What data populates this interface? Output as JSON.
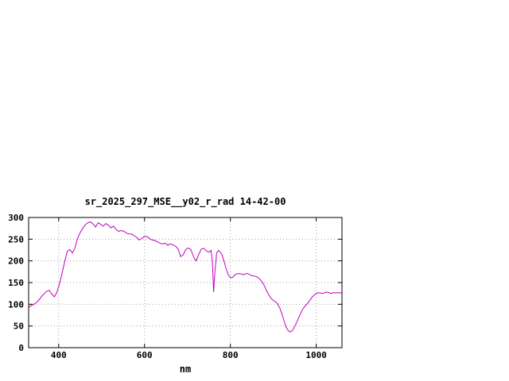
{
  "chart_data": {
    "type": "line",
    "title": "sr_2025_297_MSE__y02_r_rad 14-42-00",
    "xlabel": "nm",
    "ylabel": "",
    "xlim": [
      330,
      1060
    ],
    "ylim": [
      0,
      300
    ],
    "xticks": [
      400,
      600,
      800,
      1000
    ],
    "yticks": [
      0,
      50,
      100,
      150,
      200,
      250,
      300
    ],
    "grid": true,
    "legend": "none",
    "line_color": "#c000c0",
    "series": [
      {
        "name": "sr_2025_297_MSE__y02_r_rad 14-42-00",
        "points": [
          [
            330,
            92
          ],
          [
            336,
            97
          ],
          [
            342,
            100
          ],
          [
            348,
            104
          ],
          [
            354,
            110
          ],
          [
            360,
            118
          ],
          [
            366,
            124
          ],
          [
            372,
            130
          ],
          [
            378,
            132
          ],
          [
            384,
            124
          ],
          [
            390,
            117
          ],
          [
            396,
            128
          ],
          [
            402,
            148
          ],
          [
            408,
            172
          ],
          [
            414,
            198
          ],
          [
            420,
            222
          ],
          [
            426,
            226
          ],
          [
            432,
            218
          ],
          [
            438,
            230
          ],
          [
            444,
            252
          ],
          [
            450,
            265
          ],
          [
            456,
            275
          ],
          [
            462,
            283
          ],
          [
            468,
            288
          ],
          [
            474,
            290
          ],
          [
            480,
            285
          ],
          [
            486,
            278
          ],
          [
            492,
            288
          ],
          [
            498,
            284
          ],
          [
            504,
            280
          ],
          [
            510,
            286
          ],
          [
            516,
            282
          ],
          [
            522,
            276
          ],
          [
            528,
            280
          ],
          [
            534,
            272
          ],
          [
            540,
            268
          ],
          [
            546,
            270
          ],
          [
            552,
            268
          ],
          [
            558,
            264
          ],
          [
            564,
            262
          ],
          [
            570,
            262
          ],
          [
            576,
            258
          ],
          [
            582,
            254
          ],
          [
            588,
            248
          ],
          [
            594,
            252
          ],
          [
            600,
            257
          ],
          [
            606,
            256
          ],
          [
            612,
            251
          ],
          [
            618,
            248
          ],
          [
            624,
            247
          ],
          [
            630,
            244
          ],
          [
            636,
            241
          ],
          [
            642,
            239
          ],
          [
            648,
            241
          ],
          [
            654,
            236
          ],
          [
            660,
            239
          ],
          [
            666,
            237
          ],
          [
            672,
            234
          ],
          [
            678,
            228
          ],
          [
            684,
            210
          ],
          [
            690,
            214
          ],
          [
            696,
            226
          ],
          [
            702,
            230
          ],
          [
            708,
            226
          ],
          [
            714,
            210
          ],
          [
            720,
            200
          ],
          [
            726,
            214
          ],
          [
            732,
            227
          ],
          [
            738,
            229
          ],
          [
            744,
            223
          ],
          [
            750,
            220
          ],
          [
            755,
            224
          ],
          [
            758,
            200
          ],
          [
            761,
            128
          ],
          [
            764,
            175
          ],
          [
            768,
            218
          ],
          [
            772,
            224
          ],
          [
            776,
            221
          ],
          [
            780,
            215
          ],
          [
            785,
            200
          ],
          [
            790,
            182
          ],
          [
            795,
            168
          ],
          [
            800,
            161
          ],
          [
            805,
            162
          ],
          [
            810,
            167
          ],
          [
            815,
            170
          ],
          [
            820,
            171
          ],
          [
            825,
            170
          ],
          [
            830,
            168
          ],
          [
            835,
            170
          ],
          [
            840,
            171
          ],
          [
            845,
            168
          ],
          [
            850,
            166
          ],
          [
            855,
            165
          ],
          [
            860,
            164
          ],
          [
            865,
            161
          ],
          [
            870,
            156
          ],
          [
            875,
            150
          ],
          [
            880,
            141
          ],
          [
            885,
            130
          ],
          [
            890,
            121
          ],
          [
            895,
            113
          ],
          [
            900,
            109
          ],
          [
            905,
            106
          ],
          [
            910,
            101
          ],
          [
            915,
            92
          ],
          [
            920,
            78
          ],
          [
            925,
            62
          ],
          [
            930,
            47
          ],
          [
            935,
            39
          ],
          [
            940,
            36
          ],
          [
            945,
            40
          ],
          [
            950,
            49
          ],
          [
            955,
            59
          ],
          [
            960,
            71
          ],
          [
            965,
            82
          ],
          [
            970,
            91
          ],
          [
            975,
            97
          ],
          [
            980,
            102
          ],
          [
            985,
            109
          ],
          [
            990,
            116
          ],
          [
            995,
            121
          ],
          [
            1000,
            125
          ],
          [
            1005,
            127
          ],
          [
            1010,
            126
          ],
          [
            1015,
            125
          ],
          [
            1020,
            127
          ],
          [
            1025,
            128
          ],
          [
            1030,
            127
          ],
          [
            1035,
            125
          ],
          [
            1040,
            127
          ],
          [
            1045,
            126
          ],
          [
            1050,
            127
          ],
          [
            1055,
            126
          ],
          [
            1060,
            127
          ]
        ]
      }
    ]
  }
}
